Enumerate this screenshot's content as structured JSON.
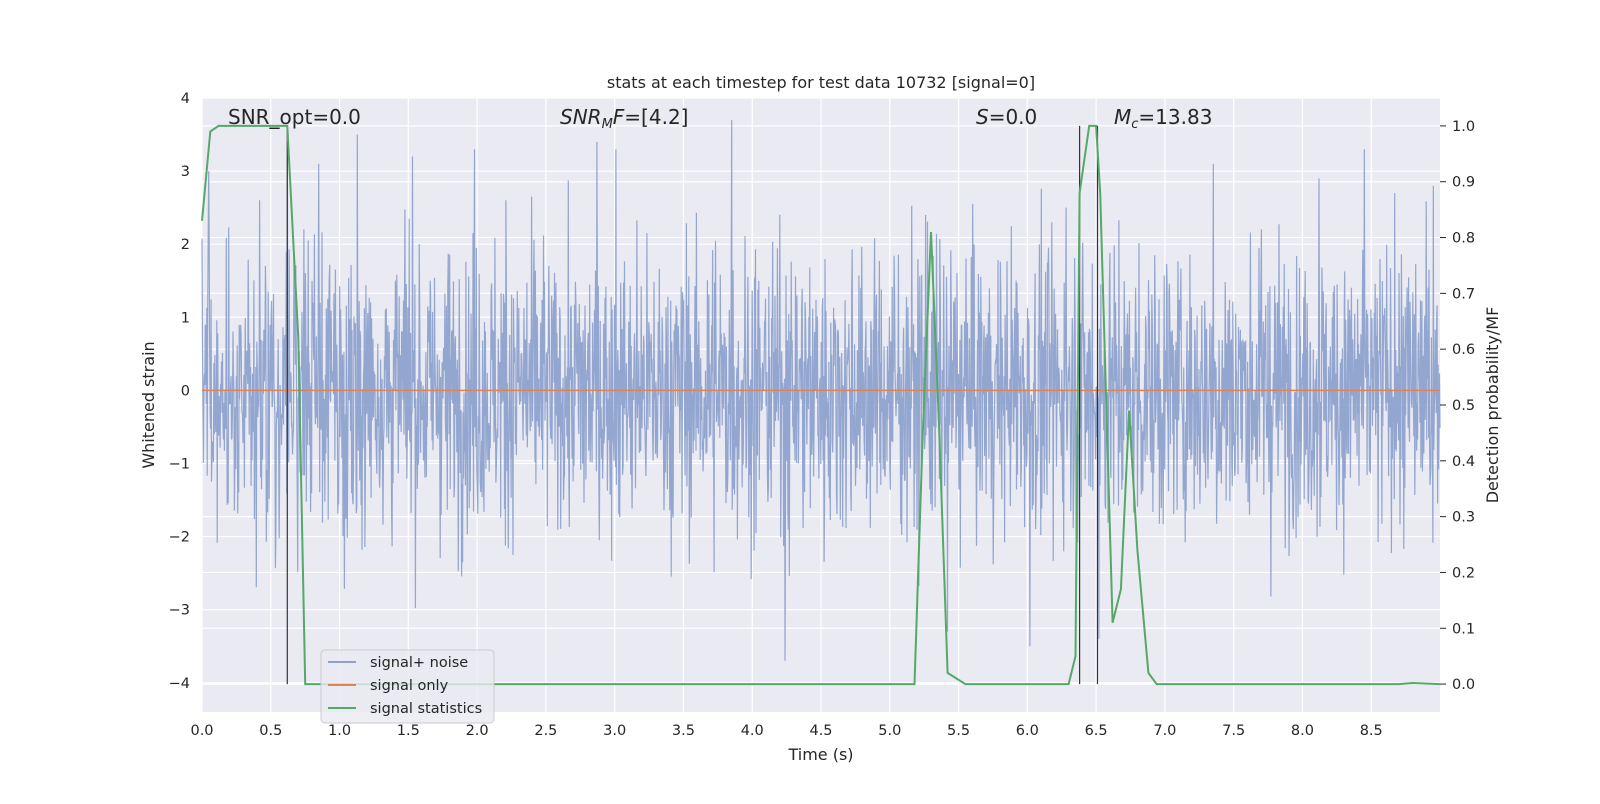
{
  "chart_data": {
    "type": "line",
    "title": "stats at each timestep for test data 10732 [signal=0]",
    "xlabel": "Time (s)",
    "ylabel": "Whitened strain",
    "y2label": "Detection probability/MF",
    "xlim": [
      0.0,
      9.0
    ],
    "ylim": [
      -4.4,
      4.0
    ],
    "y2lim": [
      -0.05,
      1.05
    ],
    "xticks": [
      "0.0",
      "0.5",
      "1.0",
      "1.5",
      "2.0",
      "2.5",
      "3.0",
      "3.5",
      "4.0",
      "4.5",
      "5.0",
      "5.5",
      "6.0",
      "6.5",
      "7.0",
      "7.5",
      "8.0",
      "8.5"
    ],
    "yticks": [
      "4",
      "3",
      "2",
      "1",
      "0",
      "−1",
      "−2",
      "−3",
      "−4"
    ],
    "y2ticks": [
      "1.0",
      "0.9",
      "0.8",
      "0.7",
      "0.6",
      "0.5",
      "0.4",
      "0.3",
      "0.2",
      "0.1",
      "0.0"
    ],
    "grid": true,
    "legend_position": "lower-left",
    "annotations": {
      "snr_opt": "SNR_opt=0.0",
      "snr_mf": "SNR_MF=[4.2]",
      "s": "S=0.0",
      "mc": "M_c=13.83"
    },
    "series": [
      {
        "name": "signal+ noise",
        "color": "#8ea2cd",
        "description_values": "whitened noise, approximately N(0,1), range about -4.0 to 3.7 over 0-9 s",
        "envelope_peaks_x": [
          0.05,
          0.42,
          0.62,
          0.85,
          1.13,
          1.53,
          1.98,
          2.21,
          2.87,
          3.01,
          3.85,
          4.24,
          5.26,
          5.42,
          6.02,
          6.28,
          6.52,
          7.35,
          8.12,
          8.45,
          8.67,
          8.95
        ],
        "envelope_peaks_y": [
          3.0,
          2.6,
          3.4,
          3.1,
          3.5,
          3.2,
          3.3,
          2.6,
          3.4,
          3.3,
          3.7,
          -3.7,
          2.4,
          -3.3,
          -3.5,
          2.5,
          -3.4,
          3.1,
          2.9,
          3.3,
          2.7,
          2.8
        ]
      },
      {
        "name": "signal only",
        "color": "#dd8452",
        "x": [
          0.0,
          9.0
        ],
        "y": [
          0.0,
          0.0
        ]
      },
      {
        "name": "signal statistics",
        "color": "#55a868",
        "axis": "right",
        "x": [
          0.0,
          0.06,
          0.12,
          0.5,
          0.62,
          0.7,
          0.75,
          5.18,
          5.24,
          5.3,
          5.36,
          5.42,
          5.55,
          5.65,
          6.3,
          6.35,
          6.38,
          6.45,
          6.5,
          6.53,
          6.58,
          6.62,
          6.68,
          6.74,
          6.8,
          6.88,
          6.94,
          8.7,
          8.8,
          9.0
        ],
        "y": [
          0.83,
          0.99,
          1.0,
          1.0,
          1.0,
          0.62,
          0.0,
          0.0,
          0.45,
          0.81,
          0.45,
          0.02,
          0.0,
          0.0,
          0.0,
          0.05,
          0.88,
          1.0,
          1.0,
          0.88,
          0.45,
          0.11,
          0.17,
          0.49,
          0.24,
          0.02,
          0.0,
          0.0,
          0.002,
          0.0
        ]
      }
    ],
    "vertical_lines_x": [
      0.62,
      6.38,
      6.51
    ]
  }
}
